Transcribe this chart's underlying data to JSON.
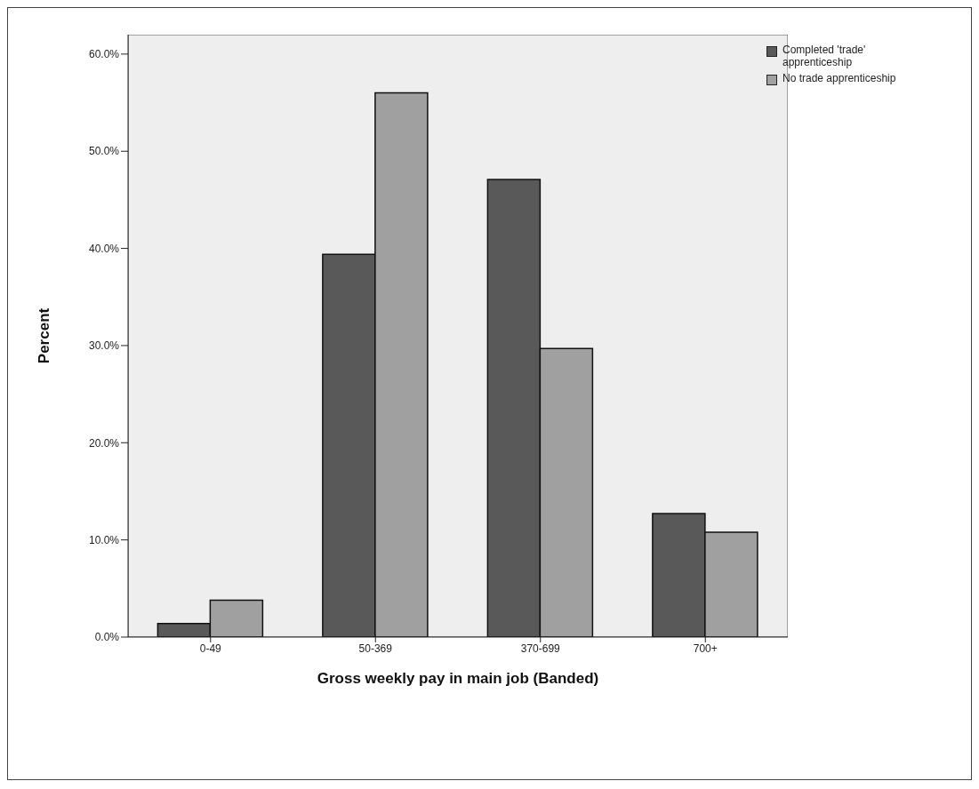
{
  "chart_data": {
    "type": "bar",
    "xlabel": "Gross weekly pay in main job (Banded)",
    "ylabel": "Percent",
    "categories": [
      "0-49",
      "50-369",
      "370-699",
      "700+"
    ],
    "series": [
      {
        "name": "Completed 'trade' apprenticeship",
        "color": "#595959",
        "values": [
          1.4,
          39.4,
          47.1,
          12.7
        ]
      },
      {
        "name": "No trade apprenticeship",
        "color": "#a0a0a0",
        "values": [
          3.8,
          56.0,
          29.7,
          10.8
        ]
      }
    ],
    "ylim": [
      0,
      62
    ],
    "yticks": [
      {
        "value": 0,
        "label": "0.0%"
      },
      {
        "value": 10,
        "label": "10.0%"
      },
      {
        "value": 20,
        "label": "20.0%"
      },
      {
        "value": 30,
        "label": "30.0%"
      },
      {
        "value": 40,
        "label": "40.0%"
      },
      {
        "value": 50,
        "label": "50.0%"
      },
      {
        "value": 60,
        "label": "60.0%"
      }
    ],
    "grid": false,
    "legend": "top right"
  }
}
